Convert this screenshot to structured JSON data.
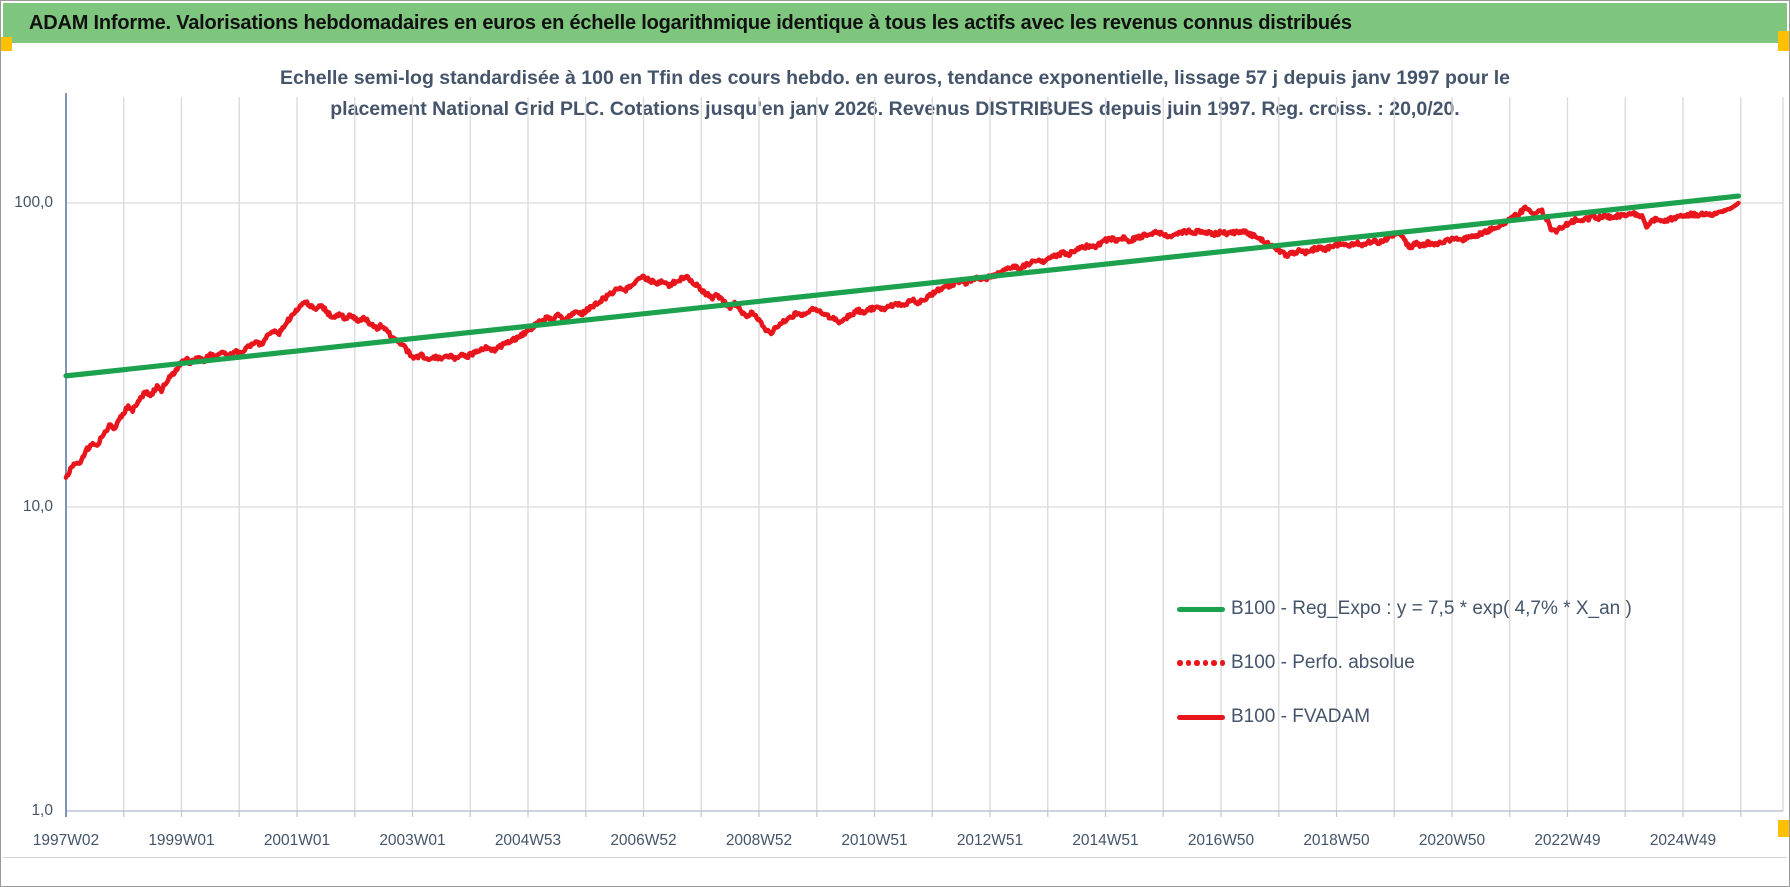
{
  "header": {
    "title": "ADAM Informe. Valorisations hebdomadaires en euros en échelle logarithmique identique à tous les actifs avec les revenus connus distribués",
    "background": "#7EC57E",
    "accent_color": "#FFC000"
  },
  "chart_data": {
    "type": "line",
    "title_line1": "Echelle semi-log standardisée à 100 en Tfin des cours hebdo. en euros, tendance exponentielle, lissage 57 j depuis janv 1997 pour le",
    "title_line2": "placement National Grid PLC. Cotations jusqu'en janv 2026. Revenus DISTRIBUES depuis juin 1997. Reg. croiss. : 20,0/20.",
    "title_color": "#44546A",
    "grid_color": "#D9D9D9",
    "axis_line_color": "#7F93B2",
    "x_axis": {
      "kind": "weekly-categories",
      "start_year_decimal": 1997.04,
      "end_year_decimal": 2026.0,
      "gridline_every_years": 1,
      "tick_labels": [
        "1997W02",
        "1999W01",
        "2001W01",
        "2003W01",
        "2004W53",
        "2006W52",
        "2008W52",
        "2010W51",
        "2012W51",
        "2014W51",
        "2016W50",
        "2018W50",
        "2020W50",
        "2022W49",
        "2024W49"
      ],
      "tick_label_spacing_years": 2
    },
    "y_axis": {
      "scale": "log10",
      "range": [
        1,
        220
      ],
      "ticks": [
        {
          "label": "100,0",
          "value": 100
        },
        {
          "label": "10,0",
          "value": 10
        },
        {
          "label": "1,0",
          "value": 1
        }
      ]
    },
    "legend_position": "center-right",
    "series": [
      {
        "name": "B100 - Reg_Expo : y = 7,5 * exp( 4,7% *  X_an )",
        "color": "#1CA24E",
        "style": "solid",
        "points": [
          [
            1997.04,
            27.0
          ],
          [
            2026.0,
            105.4
          ]
        ]
      },
      {
        "name": "B100 - Perfo. absolue",
        "color": "#E8151C",
        "style": "dotted",
        "note": "coincides with B100 - FVADAM on the plot (not separately visible)",
        "points": []
      },
      {
        "name": "B100 - FVADAM",
        "color": "#E8151C",
        "style": "solid",
        "points": [
          [
            1997.04,
            12.4
          ],
          [
            1997.12,
            13.4
          ],
          [
            1997.2,
            14.1
          ],
          [
            1997.27,
            13.7
          ],
          [
            1997.38,
            15.3
          ],
          [
            1997.5,
            16.2
          ],
          [
            1997.57,
            15.7
          ],
          [
            1997.69,
            17.5
          ],
          [
            1997.81,
            18.6
          ],
          [
            1997.88,
            18.1
          ],
          [
            1998.0,
            19.9
          ],
          [
            1998.12,
            21.4
          ],
          [
            1998.19,
            20.7
          ],
          [
            1998.31,
            22.7
          ],
          [
            1998.42,
            23.9
          ],
          [
            1998.5,
            23.1
          ],
          [
            1998.62,
            25.0
          ],
          [
            1998.69,
            24.2
          ],
          [
            1998.81,
            26.3
          ],
          [
            1998.92,
            27.6
          ],
          [
            1999.0,
            29.3
          ],
          [
            1999.12,
            30.7
          ],
          [
            1999.19,
            29.7
          ],
          [
            1999.31,
            31.1
          ],
          [
            1999.42,
            30.1
          ],
          [
            1999.54,
            31.9
          ],
          [
            1999.62,
            30.8
          ],
          [
            1999.73,
            32.3
          ],
          [
            1999.85,
            31.3
          ],
          [
            1999.96,
            32.4
          ],
          [
            2000.08,
            31.9
          ],
          [
            2000.19,
            33.6
          ],
          [
            2000.31,
            35.1
          ],
          [
            2000.42,
            34.3
          ],
          [
            2000.54,
            36.6
          ],
          [
            2000.65,
            38.3
          ],
          [
            2000.73,
            37.3
          ],
          [
            2000.85,
            40.2
          ],
          [
            2000.96,
            42.8
          ],
          [
            2001.08,
            45.2
          ],
          [
            2001.19,
            47.2
          ],
          [
            2001.27,
            46.0
          ],
          [
            2001.35,
            44.6
          ],
          [
            2001.46,
            45.8
          ],
          [
            2001.58,
            43.4
          ],
          [
            2001.69,
            42.0
          ],
          [
            2001.77,
            43.3
          ],
          [
            2001.88,
            41.6
          ],
          [
            2001.96,
            42.7
          ],
          [
            2002.08,
            41.0
          ],
          [
            2002.19,
            41.9
          ],
          [
            2002.31,
            40.1
          ],
          [
            2002.42,
            38.7
          ],
          [
            2002.5,
            39.5
          ],
          [
            2002.62,
            37.3
          ],
          [
            2002.73,
            35.9
          ],
          [
            2002.85,
            34.4
          ],
          [
            2002.96,
            32.4
          ],
          [
            2003.08,
            30.8
          ],
          [
            2003.19,
            31.7
          ],
          [
            2003.31,
            30.3
          ],
          [
            2003.42,
            31.2
          ],
          [
            2003.54,
            30.6
          ],
          [
            2003.65,
            31.5
          ],
          [
            2003.77,
            30.9
          ],
          [
            2003.88,
            31.8
          ],
          [
            2004.0,
            31.4
          ],
          [
            2004.15,
            32.5
          ],
          [
            2004.31,
            33.3
          ],
          [
            2004.46,
            32.7
          ],
          [
            2004.62,
            34.3
          ],
          [
            2004.77,
            35.3
          ],
          [
            2004.92,
            36.6
          ],
          [
            2005.04,
            37.9
          ],
          [
            2005.15,
            39.6
          ],
          [
            2005.27,
            41.0
          ],
          [
            2005.38,
            42.3
          ],
          [
            2005.46,
            41.1
          ],
          [
            2005.58,
            43.1
          ],
          [
            2005.65,
            40.8
          ],
          [
            2005.77,
            42.5
          ],
          [
            2005.88,
            43.9
          ],
          [
            2005.96,
            43.1
          ],
          [
            2006.08,
            44.9
          ],
          [
            2006.23,
            46.8
          ],
          [
            2006.38,
            48.8
          ],
          [
            2006.54,
            51.2
          ],
          [
            2006.65,
            53.0
          ],
          [
            2006.73,
            51.7
          ],
          [
            2006.85,
            54.3
          ],
          [
            2006.96,
            55.9
          ],
          [
            2007.04,
            57.1
          ],
          [
            2007.15,
            55.7
          ],
          [
            2007.27,
            54.2
          ],
          [
            2007.38,
            55.3
          ],
          [
            2007.46,
            53.5
          ],
          [
            2007.58,
            54.9
          ],
          [
            2007.69,
            56.3
          ],
          [
            2007.77,
            57.3
          ],
          [
            2007.88,
            55.4
          ],
          [
            2008.0,
            52.8
          ],
          [
            2008.12,
            50.3
          ],
          [
            2008.23,
            48.7
          ],
          [
            2008.31,
            49.7
          ],
          [
            2008.42,
            47.3
          ],
          [
            2008.54,
            45.4
          ],
          [
            2008.62,
            46.9
          ],
          [
            2008.73,
            44.1
          ],
          [
            2008.85,
            42.5
          ],
          [
            2008.92,
            43.9
          ],
          [
            2009.04,
            41.0
          ],
          [
            2009.15,
            38.6
          ],
          [
            2009.23,
            37.2
          ],
          [
            2009.35,
            39.1
          ],
          [
            2009.46,
            40.8
          ],
          [
            2009.58,
            42.0
          ],
          [
            2009.69,
            43.3
          ],
          [
            2009.77,
            42.3
          ],
          [
            2009.88,
            43.7
          ],
          [
            2010.0,
            45.1
          ],
          [
            2010.12,
            43.8
          ],
          [
            2010.23,
            42.5
          ],
          [
            2010.35,
            41.3
          ],
          [
            2010.42,
            40.5
          ],
          [
            2010.54,
            41.9
          ],
          [
            2010.65,
            43.2
          ],
          [
            2010.77,
            44.3
          ],
          [
            2010.85,
            43.3
          ],
          [
            2010.96,
            44.7
          ],
          [
            2011.08,
            45.5
          ],
          [
            2011.19,
            44.5
          ],
          [
            2011.31,
            45.9
          ],
          [
            2011.42,
            46.7
          ],
          [
            2011.5,
            45.7
          ],
          [
            2011.62,
            47.1
          ],
          [
            2011.73,
            47.9
          ],
          [
            2011.81,
            46.9
          ],
          [
            2011.92,
            48.3
          ],
          [
            2012.04,
            50.2
          ],
          [
            2012.15,
            51.8
          ],
          [
            2012.27,
            53.0
          ],
          [
            2012.38,
            54.0
          ],
          [
            2012.5,
            55.1
          ],
          [
            2012.58,
            54.3
          ],
          [
            2012.69,
            55.6
          ],
          [
            2012.81,
            56.5
          ],
          [
            2012.88,
            55.6
          ],
          [
            2013.0,
            56.7
          ],
          [
            2013.12,
            57.9
          ],
          [
            2013.23,
            59.2
          ],
          [
            2013.35,
            60.7
          ],
          [
            2013.46,
            61.9
          ],
          [
            2013.54,
            60.7
          ],
          [
            2013.65,
            62.5
          ],
          [
            2013.77,
            63.9
          ],
          [
            2013.88,
            65.1
          ],
          [
            2013.96,
            64.0
          ],
          [
            2014.08,
            65.8
          ],
          [
            2014.19,
            67.3
          ],
          [
            2014.31,
            68.7
          ],
          [
            2014.38,
            67.5
          ],
          [
            2014.5,
            69.4
          ],
          [
            2014.62,
            71.0
          ],
          [
            2014.73,
            72.3
          ],
          [
            2014.81,
            71.1
          ],
          [
            2014.92,
            73.2
          ],
          [
            2015.04,
            75.5
          ],
          [
            2015.15,
            76.5
          ],
          [
            2015.23,
            75.1
          ],
          [
            2015.35,
            76.6
          ],
          [
            2015.46,
            75.2
          ],
          [
            2015.58,
            76.8
          ],
          [
            2015.69,
            77.9
          ],
          [
            2015.81,
            79.1
          ],
          [
            2015.92,
            80.3
          ],
          [
            2016.04,
            79.0
          ],
          [
            2016.15,
            77.7
          ],
          [
            2016.27,
            78.9
          ],
          [
            2016.38,
            80.1
          ],
          [
            2016.5,
            80.9
          ],
          [
            2016.58,
            79.9
          ],
          [
            2016.69,
            81.1
          ],
          [
            2016.81,
            80.0
          ],
          [
            2016.92,
            79.1
          ],
          [
            2017.04,
            80.1
          ],
          [
            2017.15,
            79.0
          ],
          [
            2017.27,
            79.9
          ],
          [
            2017.38,
            81.0
          ],
          [
            2017.5,
            79.5
          ],
          [
            2017.62,
            77.6
          ],
          [
            2017.73,
            75.9
          ],
          [
            2017.85,
            74.0
          ],
          [
            2017.96,
            71.8
          ],
          [
            2018.08,
            68.9
          ],
          [
            2018.19,
            67.3
          ],
          [
            2018.31,
            68.7
          ],
          [
            2018.42,
            69.9
          ],
          [
            2018.5,
            68.7
          ],
          [
            2018.62,
            70.1
          ],
          [
            2018.73,
            71.3
          ],
          [
            2018.81,
            70.1
          ],
          [
            2018.92,
            71.5
          ],
          [
            2019.04,
            72.7
          ],
          [
            2019.15,
            73.8
          ],
          [
            2019.27,
            72.7
          ],
          [
            2019.38,
            74.0
          ],
          [
            2019.46,
            72.9
          ],
          [
            2019.58,
            74.3
          ],
          [
            2019.69,
            75.4
          ],
          [
            2019.77,
            74.3
          ],
          [
            2019.88,
            75.7
          ],
          [
            2020.0,
            78.2
          ],
          [
            2020.12,
            80.1
          ],
          [
            2020.23,
            74.8
          ],
          [
            2020.31,
            71.3
          ],
          [
            2020.42,
            73.6
          ],
          [
            2020.5,
            72.1
          ],
          [
            2020.62,
            73.9
          ],
          [
            2020.73,
            72.8
          ],
          [
            2020.85,
            74.1
          ],
          [
            2020.96,
            75.3
          ],
          [
            2021.08,
            76.3
          ],
          [
            2021.19,
            75.2
          ],
          [
            2021.31,
            76.7
          ],
          [
            2021.42,
            77.9
          ],
          [
            2021.54,
            79.3
          ],
          [
            2021.65,
            80.9
          ],
          [
            2021.77,
            82.8
          ],
          [
            2021.88,
            84.9
          ],
          [
            2022.0,
            87.5
          ],
          [
            2022.12,
            90.3
          ],
          [
            2022.23,
            93.4
          ],
          [
            2022.31,
            96.0
          ],
          [
            2022.42,
            93.2
          ],
          [
            2022.46,
            91.3
          ],
          [
            2022.54,
            93.8
          ],
          [
            2022.58,
            95.1
          ],
          [
            2022.69,
            87.6
          ],
          [
            2022.77,
            81.2
          ],
          [
            2022.85,
            80.6
          ],
          [
            2022.96,
            83.9
          ],
          [
            2023.08,
            86.3
          ],
          [
            2023.19,
            88.1
          ],
          [
            2023.27,
            87.0
          ],
          [
            2023.38,
            88.6
          ],
          [
            2023.5,
            90.2
          ],
          [
            2023.58,
            89.3
          ],
          [
            2023.69,
            90.6
          ],
          [
            2023.81,
            89.4
          ],
          [
            2023.92,
            90.7
          ],
          [
            2024.04,
            91.7
          ],
          [
            2024.15,
            92.6
          ],
          [
            2024.27,
            91.3
          ],
          [
            2024.35,
            89.8
          ],
          [
            2024.42,
            82.4
          ],
          [
            2024.5,
            87.3
          ],
          [
            2024.62,
            88.6
          ],
          [
            2024.73,
            87.4
          ],
          [
            2024.85,
            88.7
          ],
          [
            2024.96,
            89.6
          ],
          [
            2025.08,
            90.8
          ],
          [
            2025.19,
            91.9
          ],
          [
            2025.31,
            90.9
          ],
          [
            2025.42,
            92.4
          ],
          [
            2025.5,
            91.4
          ],
          [
            2025.62,
            92.2
          ],
          [
            2025.73,
            94.1
          ],
          [
            2025.85,
            95.8
          ],
          [
            2025.92,
            97.2
          ],
          [
            2026.0,
            100.0
          ]
        ]
      }
    ]
  }
}
